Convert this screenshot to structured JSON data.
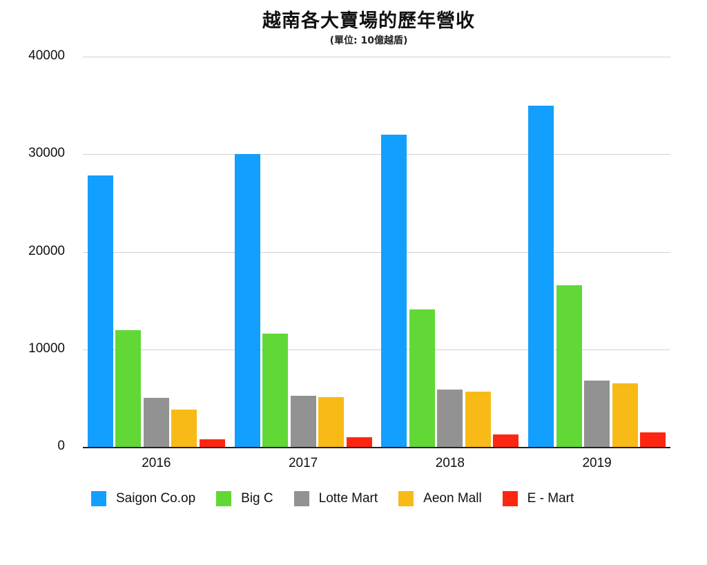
{
  "chart_data": {
    "type": "bar",
    "title": "越南各大賣場的歷年營收",
    "subtitle": "(單位: 10億越盾)",
    "xlabel": "",
    "ylabel": "",
    "categories": [
      "2016",
      "2017",
      "2018",
      "2019"
    ],
    "series": [
      {
        "name": "Saigon Co.op",
        "color": "#139ffd",
        "values": [
          27800,
          30000,
          32000,
          35000
        ]
      },
      {
        "name": "Big C",
        "color": "#61d836",
        "values": [
          12000,
          11600,
          14100,
          16600
        ]
      },
      {
        "name": "Lotte Mart",
        "color": "#929292",
        "values": [
          5000,
          5250,
          5900,
          6800
        ]
      },
      {
        "name": "Aeon Mall",
        "color": "#f8ba16",
        "values": [
          3850,
          5100,
          5700,
          6500
        ]
      },
      {
        "name": "E - Mart",
        "color": "#fd2711",
        "values": [
          800,
          1000,
          1250,
          1500
        ]
      }
    ],
    "ylim": [
      0,
      40000
    ],
    "yticks": [
      "0",
      "10000",
      "20000",
      "30000",
      "40000"
    ],
    "grid": true,
    "legend_position": "bottom"
  }
}
